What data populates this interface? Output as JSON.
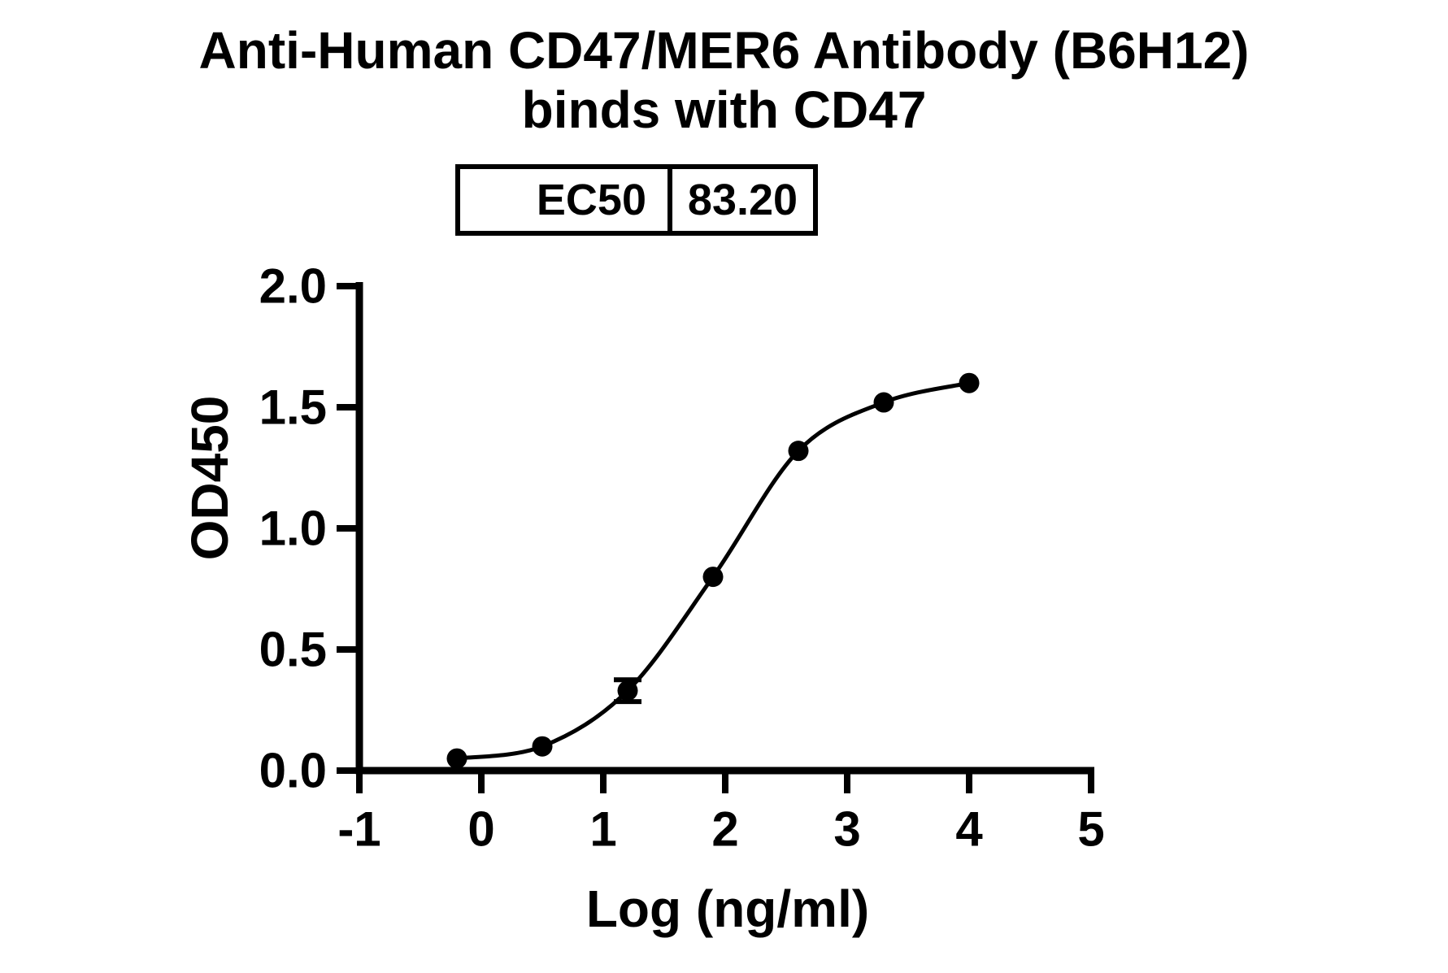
{
  "title": {
    "line1": "Anti-Human CD47/MER6 Antibody (B6H12)",
    "line2": "binds with CD47"
  },
  "ec50_table": {
    "label": "EC50",
    "value": "83.20"
  },
  "chart_data": {
    "type": "scatter",
    "title": "Anti-Human CD47/MER6 Antibody (B6H12) binds with CD47",
    "xlabel": "Log (ng/ml)",
    "ylabel": "OD450",
    "xlim": [
      -1,
      5
    ],
    "ylim": [
      0.0,
      2.0
    ],
    "x_ticks": [
      -1,
      0,
      1,
      2,
      3,
      4,
      5
    ],
    "x_tick_labels": [
      "-1",
      "0",
      "1",
      "2",
      "3",
      "4",
      "5"
    ],
    "y_ticks": [
      0.0,
      0.5,
      1.0,
      1.5,
      2.0
    ],
    "y_tick_labels": [
      "0.0",
      "0.5",
      "1.0",
      "1.5",
      "2.0"
    ],
    "grid": false,
    "legend": "none",
    "curve_fit": "4PL sigmoidal dose-response",
    "ec50": 83.2,
    "marker_color": "#000000",
    "curve_color": "#000000",
    "axis_color": "#000000",
    "series": [
      {
        "name": "Anti-Human CD47/MER6 Antibody (B6H12)",
        "points": [
          {
            "x": -0.2,
            "y": 0.05
          },
          {
            "x": 0.5,
            "y": 0.1
          },
          {
            "x": 1.2,
            "y": 0.33,
            "err": 0.045
          },
          {
            "x": 1.9,
            "y": 0.8
          },
          {
            "x": 2.6,
            "y": 1.32
          },
          {
            "x": 3.3,
            "y": 1.52
          },
          {
            "x": 4.0,
            "y": 1.6
          }
        ]
      }
    ]
  }
}
